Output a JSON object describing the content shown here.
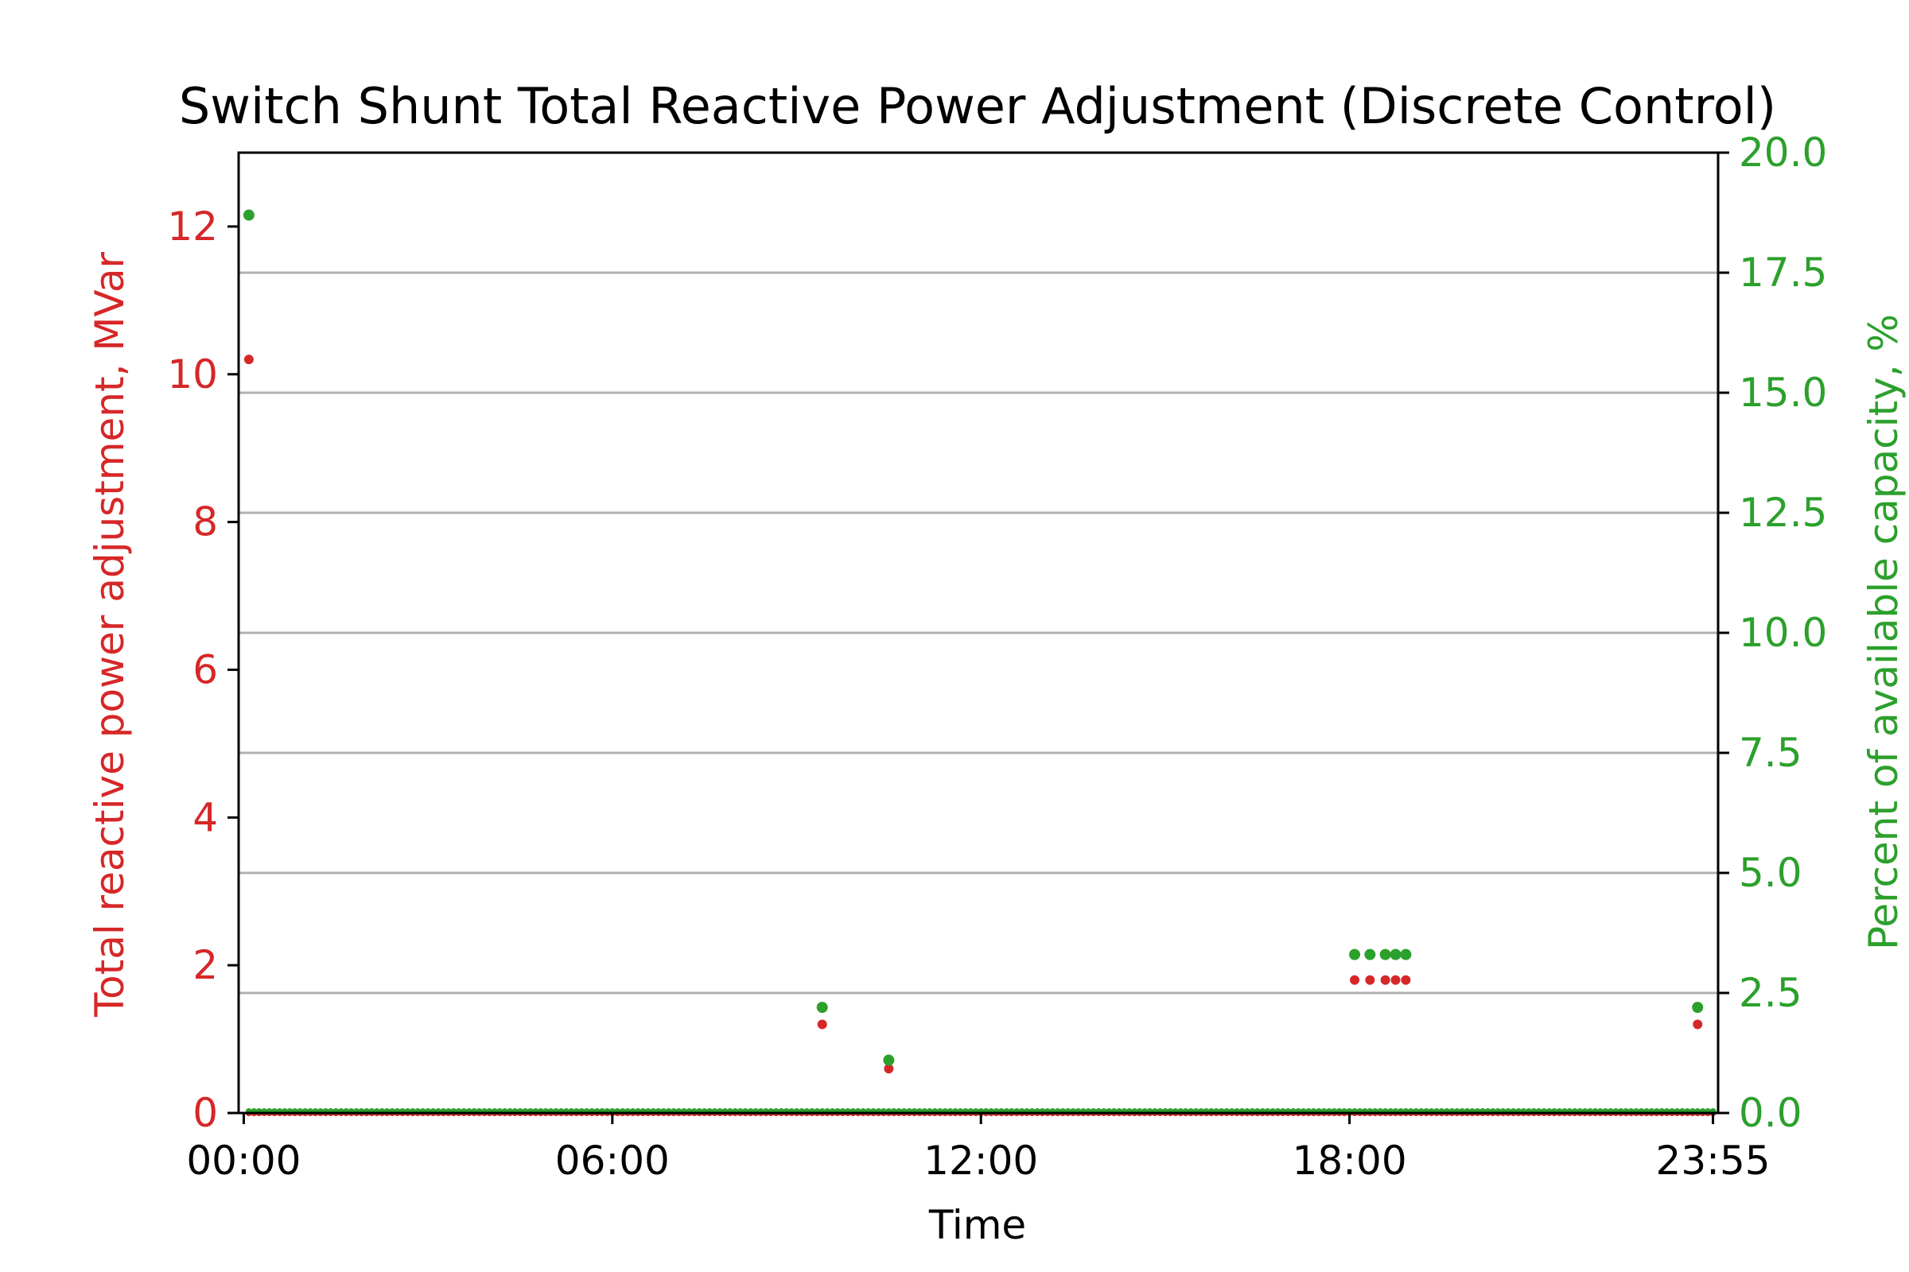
{
  "chart_data": {
    "type": "scatter",
    "title": "Switch Shunt Total Reactive Power Adjustment (Discrete Control)",
    "xlabel": "Time",
    "ylabel_left": "Total reactive power adjustment, MVar",
    "ylabel_right": "Percent of available capacity, %",
    "x_ticks": [
      "00:00",
      "06:00",
      "12:00",
      "18:00",
      "23:55"
    ],
    "x_tick_minutes": [
      0,
      360,
      720,
      1080,
      1435
    ],
    "xlim_minutes": [
      -5,
      1440
    ],
    "y_left_ticks": [
      "0",
      "2",
      "4",
      "6",
      "8",
      "10",
      "12"
    ],
    "ylim_left": [
      0,
      13
    ],
    "y_right_ticks": [
      "0.0",
      "2.5",
      "5.0",
      "7.5",
      "10.0",
      "12.5",
      "15.0",
      "17.5",
      "20.0"
    ],
    "ylim_right": [
      0,
      20
    ],
    "grid": "horizontal, right axis",
    "legend": "none",
    "colors": {
      "left": "#d62728",
      "right": "#2ca02c",
      "grid": "#b0b0b0"
    },
    "series": [
      {
        "axis": "left",
        "color": "#d62728",
        "points": [
          {
            "x": "00:05",
            "y": 10.2
          },
          {
            "x": "09:25",
            "y": 1.2
          },
          {
            "x": "10:30",
            "y": 0.6
          },
          {
            "x": "18:05",
            "y": 1.8
          },
          {
            "x": "18:20",
            "y": 1.8
          },
          {
            "x": "18:35",
            "y": 1.8
          },
          {
            "x": "18:45",
            "y": 1.8
          },
          {
            "x": "18:55",
            "y": 1.8
          },
          {
            "x": "23:40",
            "y": 1.2
          }
        ]
      },
      {
        "axis": "right",
        "color": "#2ca02c",
        "points": [
          {
            "x": "00:05",
            "y": 18.7
          },
          {
            "x": "09:25",
            "y": 2.2
          },
          {
            "x": "10:30",
            "y": 1.1
          },
          {
            "x": "18:05",
            "y": 3.3
          },
          {
            "x": "18:20",
            "y": 3.3
          },
          {
            "x": "18:35",
            "y": 3.3
          },
          {
            "x": "18:45",
            "y": 3.3
          },
          {
            "x": "18:55",
            "y": 3.3
          },
          {
            "x": "23:40",
            "y": 2.2
          }
        ]
      }
    ],
    "baseline": {
      "axis": "both",
      "y": 0,
      "from": "00:05",
      "to": "23:55",
      "every_minutes": 5
    }
  }
}
